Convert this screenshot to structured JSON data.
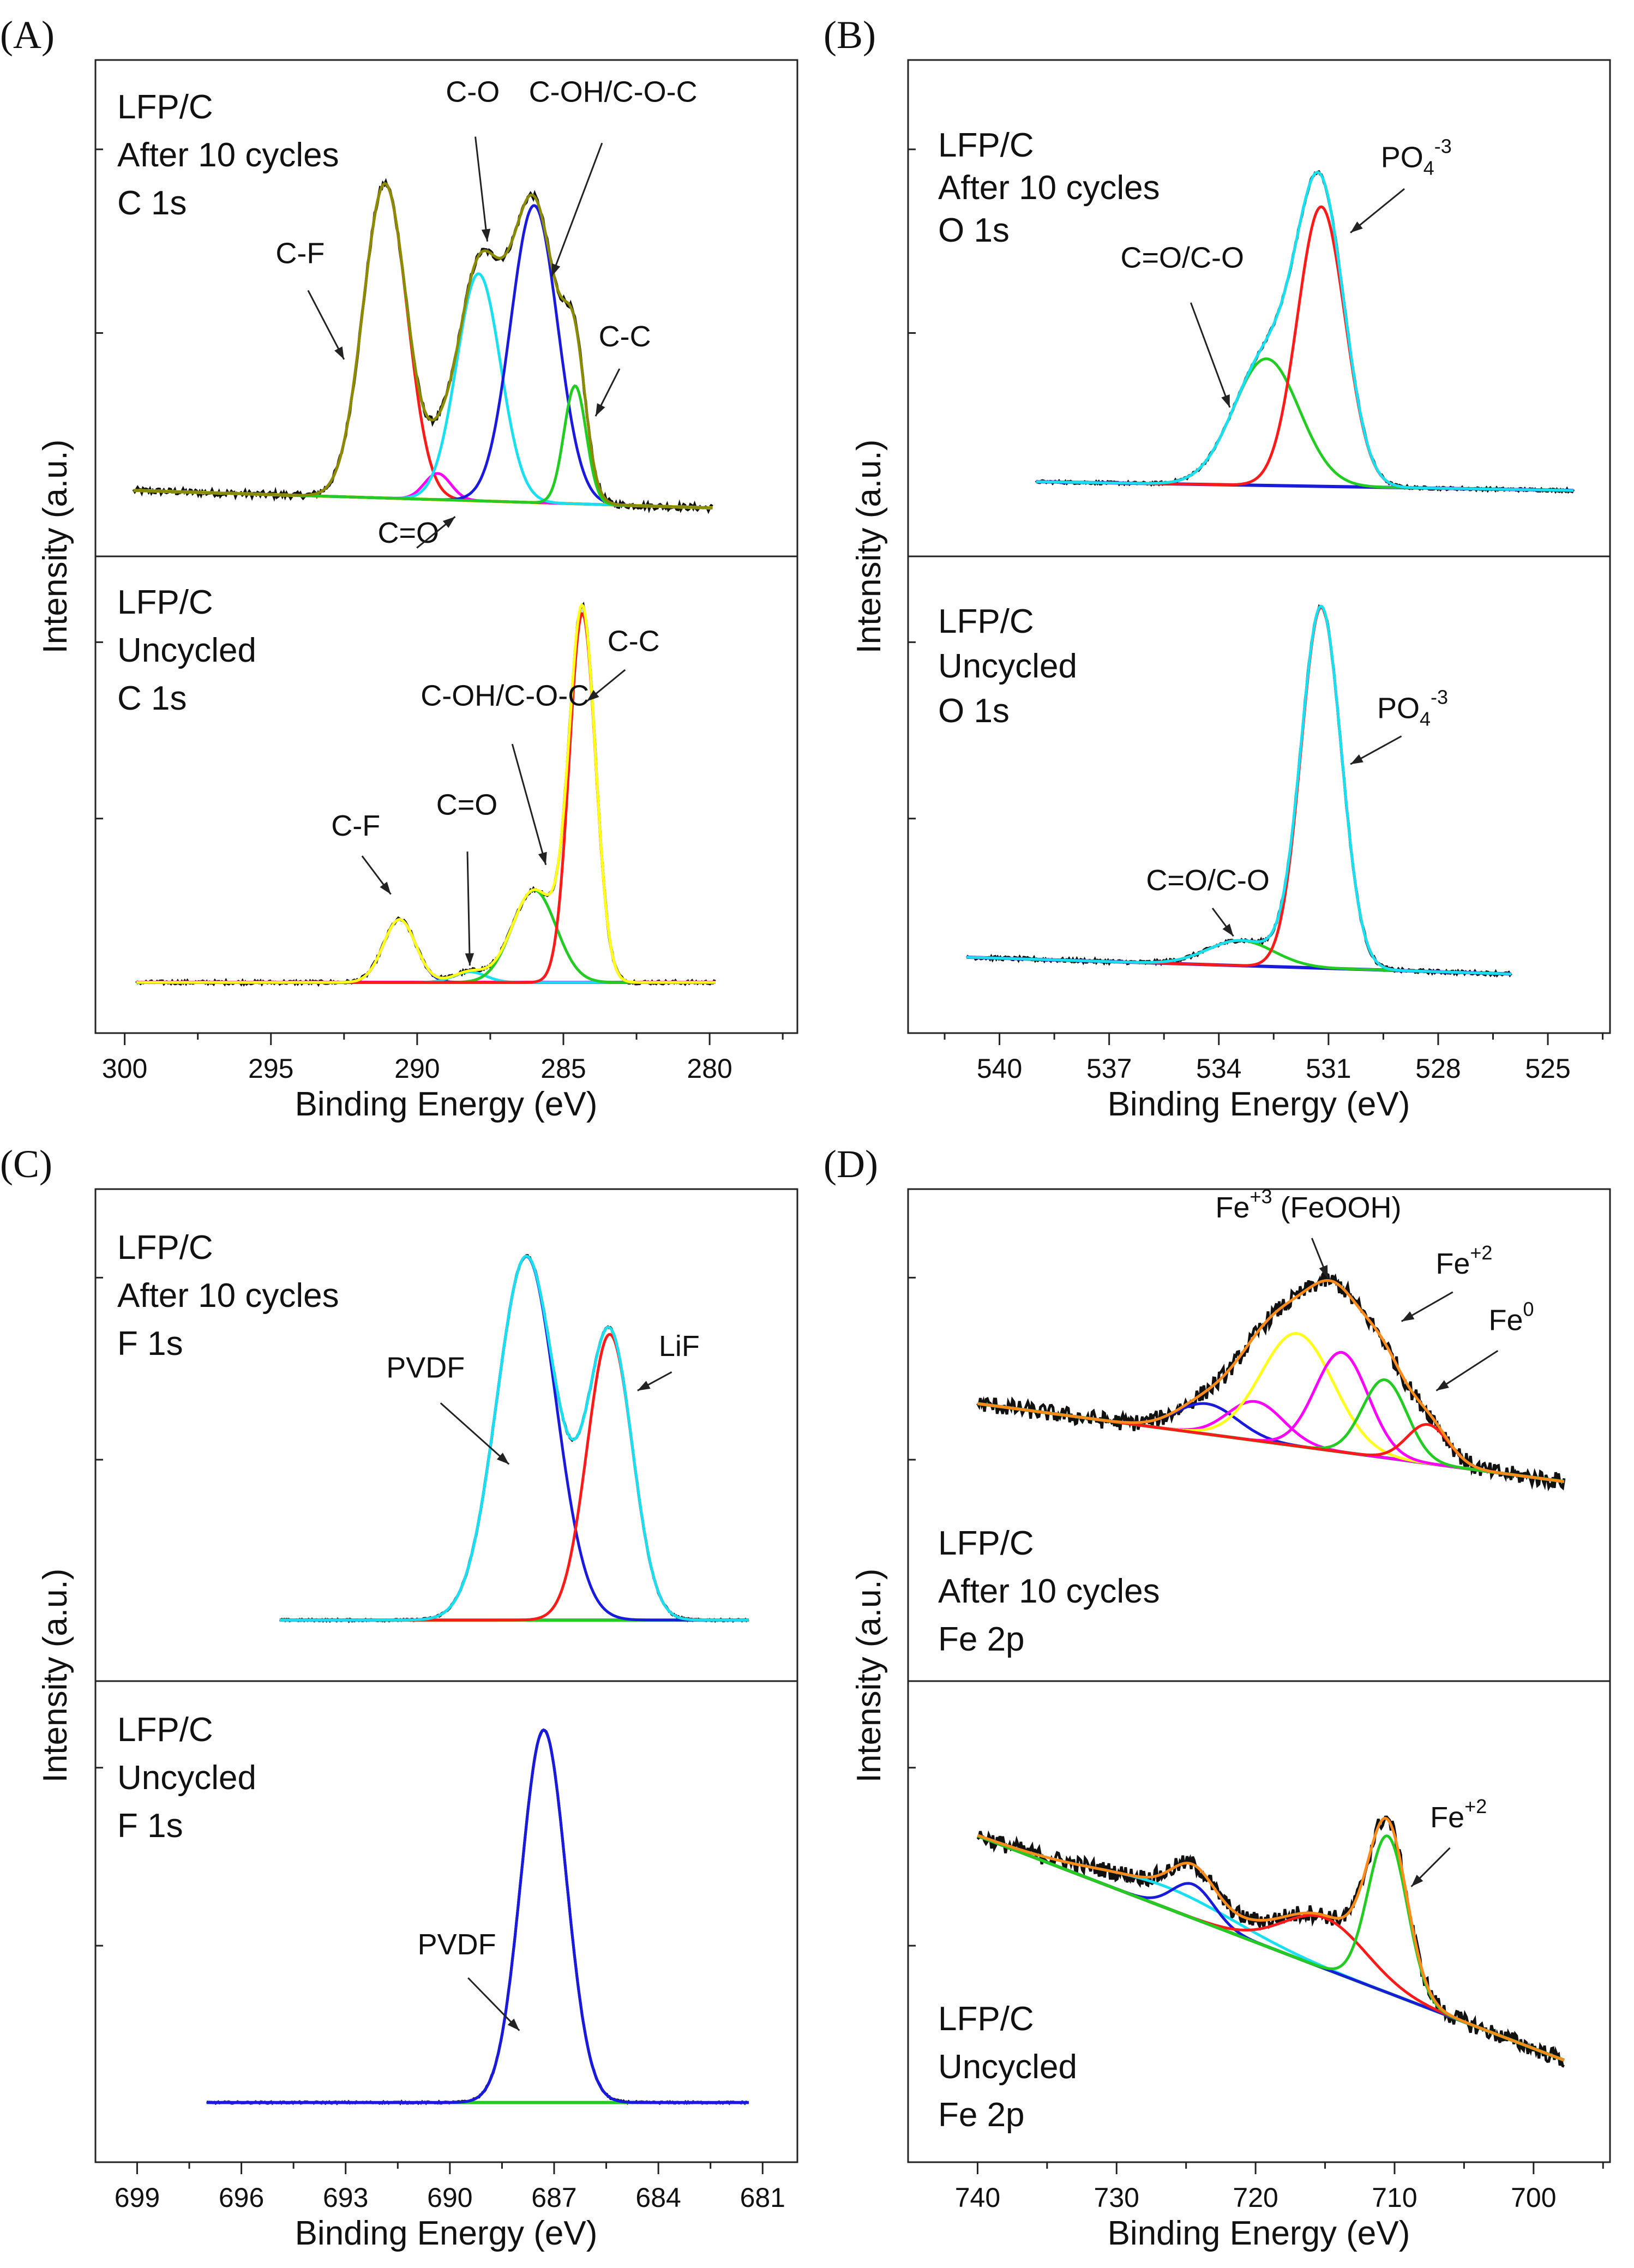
{
  "chart_data": [
    {
      "type": "line",
      "panel": "(A)",
      "xlabel": "Binding Energy (eV)",
      "ylabel": "Intensity (a.u.)",
      "xlim": [
        301,
        277
      ],
      "xticks": [
        "300",
        "295",
        "290",
        "285",
        "280"
      ],
      "xtick_values": [
        300,
        295,
        290,
        285,
        280
      ],
      "subplots": [
        {
          "name": "after",
          "text": [
            "LFP/C",
            "After 10 cycles",
            "C 1s"
          ],
          "x_range": [
            299.7,
            279.9
          ],
          "background": [
            0.06,
            0.02
          ],
          "noise": 0.007,
          "peaks": [
            {
              "name": "C-F",
              "center": 291.1,
              "height": 0.72,
              "width": 0.75,
              "color": "#ff1a1a"
            },
            {
              "name": "C=O",
              "center": 289.3,
              "height": 0.06,
              "width": 0.45,
              "color": "#ff00ff"
            },
            {
              "name": "C-O",
              "center": 287.9,
              "height": 0.52,
              "width": 0.75,
              "color": "#19e0f0"
            },
            {
              "name": "C-OH/C-O-C",
              "center": 286.0,
              "height": 0.68,
              "width": 0.8,
              "color": "#1a1add"
            },
            {
              "name": "C-C",
              "center": 284.6,
              "height": 0.27,
              "width": 0.38,
              "color": "#22cc22"
            }
          ],
          "baseline_color": "#ffff1a",
          "envelope_color": "#8b8b00",
          "labels": [
            {
              "text": "C-F",
              "x": 294.0,
              "y": 0.58,
              "tx": 292.5,
              "ty": 0.36
            },
            {
              "text": "C-O",
              "x": 288.1,
              "y": 0.95,
              "tx": 287.6,
              "ty": 0.63
            },
            {
              "text": "C-OH/C-O-C",
              "x": 283.3,
              "y": 0.95,
              "tx": 285.4,
              "ty": 0.55
            },
            {
              "text": "C-C",
              "x": 282.9,
              "y": 0.39,
              "tx": 283.9,
              "ty": 0.23
            },
            {
              "text": "C=O",
              "x": 290.3,
              "y": -0.06,
              "tx": 288.7,
              "ty": 0.0
            }
          ]
        },
        {
          "name": "unc",
          "text": [
            "LFP/C",
            "Uncycled",
            "C 1s"
          ],
          "x_range": [
            299.6,
            279.8
          ],
          "background": [
            0.03,
            0.03
          ],
          "noise": 0.004,
          "peaks": [
            {
              "name": "C-F",
              "center": 290.6,
              "height": 0.15,
              "width": 0.55,
              "color": "#1a1add"
            },
            {
              "name": "C=O",
              "center": 288.2,
              "height": 0.025,
              "width": 0.55,
              "color": "#19e0f0"
            },
            {
              "name": "C-OH/C-O-C",
              "center": 286.0,
              "height": 0.22,
              "width": 0.75,
              "color": "#22cc22"
            },
            {
              "name": "C-C",
              "center": 284.35,
              "height": 0.88,
              "width": 0.45,
              "color": "#ff1a1a"
            }
          ],
          "baseline_color": "#ff00ff",
          "envelope_color": "#ffff1a",
          "labels": [
            {
              "text": "C-F",
              "x": 292.1,
              "y": 0.38,
              "tx": 290.9,
              "ty": 0.24
            },
            {
              "text": "C=O",
              "x": 288.3,
              "y": 0.43,
              "tx": 288.2,
              "ty": 0.07
            },
            {
              "text": "C-OH/C-O-C",
              "x": 287.0,
              "y": 0.69,
              "tx": 285.6,
              "ty": 0.31
            },
            {
              "text": "C-C",
              "x": 282.6,
              "y": 0.82,
              "tx": 284.2,
              "ty": 0.7
            }
          ]
        }
      ]
    },
    {
      "type": "line",
      "panel": "(B)",
      "xlabel": "Binding Energy (eV)",
      "ylabel": "Intensity (a.u.)",
      "xlim": [
        542.5,
        523.3
      ],
      "xticks": [
        "540",
        "537",
        "534",
        "531",
        "528",
        "525"
      ],
      "xtick_values": [
        540,
        537,
        534,
        531,
        528,
        525
      ],
      "subplots": [
        {
          "name": "after",
          "text": [
            "LFP/C",
            "After 10 cycles",
            "O 1s"
          ],
          "x_range": [
            539.0,
            524.3
          ],
          "background": [
            0.08,
            0.06
          ],
          "noise": 0.003,
          "peaks": [
            {
              "name": "C=O/C-O",
              "center": 532.7,
              "height": 0.29,
              "width": 0.9,
              "color": "#22cc22"
            },
            {
              "name": "PO4",
              "center": 531.2,
              "height": 0.64,
              "width": 0.65,
              "color": "#ff1a1a"
            }
          ],
          "baseline_color": "#1a1add",
          "envelope_color": "#19e0f0",
          "labels": [
            {
              "text": "C=O/C-O",
              "x": 535.0,
              "y": 0.57,
              "tx": 533.7,
              "ty": 0.25
            },
            {
              "text": "PO",
              "x": 528.6,
              "y": 0.8,
              "tx": 530.4,
              "ty": 0.65,
              "sub": "4",
              "sup": "-3"
            }
          ]
        },
        {
          "name": "unc",
          "text": [
            "LFP/C",
            "Uncycled",
            "O 1s"
          ],
          "x_range": [
            540.9,
            526.0
          ],
          "background": [
            0.09,
            0.05
          ],
          "noise": 0.004,
          "peaks": [
            {
              "name": "C=O/C-O",
              "center": 533.4,
              "height": 0.06,
              "width": 0.9,
              "color": "#22cc22"
            },
            {
              "name": "PO4",
              "center": 531.2,
              "height": 0.86,
              "width": 0.55,
              "color": "#ff1a1a"
            }
          ],
          "baseline_color": "#1a1add",
          "envelope_color": "#19e0f0",
          "labels": [
            {
              "text": "C=O/C-O",
              "x": 534.3,
              "y": 0.25,
              "tx": 533.6,
              "ty": 0.14
            },
            {
              "text": "PO",
              "x": 528.7,
              "y": 0.66,
              "tx": 530.4,
              "ty": 0.55,
              "sub": "4",
              "sup": "-3"
            }
          ]
        }
      ]
    },
    {
      "type": "line",
      "panel": "(C)",
      "xlabel": "Binding Energy (eV)",
      "ylabel": "Intensity (a.u.)",
      "xlim": [
        700.2,
        680.0
      ],
      "xticks": [
        "699",
        "696",
        "693",
        "690",
        "687",
        "684",
        "681"
      ],
      "xtick_values": [
        699,
        696,
        693,
        690,
        687,
        684,
        681
      ],
      "subplots": [
        {
          "name": "after",
          "text": [
            "LFP/C",
            "After 10 cycles",
            "F 1s"
          ],
          "x_range": [
            694.9,
            681.4
          ],
          "background": [
            0.05,
            0.05
          ],
          "noise": 0.002,
          "peaks": [
            {
              "name": "PVDF",
              "center": 687.8,
              "height": 0.84,
              "width": 0.85,
              "color": "#1a1add"
            },
            {
              "name": "LiF",
              "center": 685.4,
              "height": 0.66,
              "width": 0.65,
              "color": "#ff1a1a"
            }
          ],
          "baseline_color": "#22cc22",
          "envelope_color": "#19e0f0",
          "labels": [
            {
              "text": "PVDF",
              "x": 690.7,
              "y": 0.61,
              "tx": 688.3,
              "ty": 0.41
            },
            {
              "text": "LiF",
              "x": 683.4,
              "y": 0.66,
              "tx": 684.6,
              "ty": 0.58
            }
          ]
        },
        {
          "name": "unc",
          "text": [
            "LFP/C",
            "Uncycled",
            "F 1s"
          ],
          "x_range": [
            697.0,
            681.4
          ],
          "background": [
            0.05,
            0.05
          ],
          "noise": 0.002,
          "peaks": [
            {
              "name": "PVDF",
              "center": 687.3,
              "height": 0.88,
              "width": 0.65,
              "color": "#1a1add"
            }
          ],
          "baseline_color": "#22cc22",
          "envelope_color": "#1a1add",
          "labels": [
            {
              "text": "PVDF",
              "x": 689.8,
              "y": 0.4,
              "tx": 688.0,
              "ty": 0.22
            }
          ]
        }
      ]
    },
    {
      "type": "line",
      "panel": "(D)",
      "xlabel": "Binding Energy (eV)",
      "ylabel": "Intensity (a.u.)",
      "xlim": [
        745.0,
        694.5
      ],
      "xticks": [
        "740",
        "730",
        "720",
        "710",
        "700"
      ],
      "xtick_values": [
        740,
        730,
        720,
        710,
        700
      ],
      "subplots": [
        {
          "name": "after",
          "text": [
            "LFP/C",
            "After 10 cycles",
            "Fe 2p"
          ],
          "x_range": [
            740.0,
            697.8
          ],
          "background": [
            0.55,
            0.37
          ],
          "noise": 0.02,
          "peaks": [
            {
              "name": "p1",
              "center": 723.5,
              "height": 0.07,
              "width": 2.2,
              "color": "#1a1add"
            },
            {
              "name": "p2",
              "center": 720.0,
              "height": 0.09,
              "width": 2.0,
              "color": "#ff00ff"
            },
            {
              "name": "Fe+3 (FeOOH)",
              "center": 717.0,
              "height": 0.26,
              "width": 2.6,
              "color": "#ffff1a"
            },
            {
              "name": "Fe+3b",
              "center": 713.8,
              "height": 0.23,
              "width": 1.9,
              "color": "#ff00ff"
            },
            {
              "name": "Fe+2",
              "center": 710.7,
              "height": 0.18,
              "width": 1.6,
              "color": "#22cc22"
            },
            {
              "name": "Fe0",
              "center": 707.6,
              "height": 0.09,
              "width": 1.5,
              "color": "#ff1a1a"
            }
          ],
          "baseline_color": "#22aa22",
          "envelope_color": "#ff8c1a",
          "labels": [
            {
              "text": "Fe",
              "x": 716.2,
              "y": 0.98,
              "tx": 714.8,
              "ty": 0.84,
              "sup": "+3",
              "tail": " (FeOOH)"
            },
            {
              "text": "Fe",
              "x": 705.0,
              "y": 0.85,
              "tx": 709.5,
              "ty": 0.74,
              "sup": "+2"
            },
            {
              "text": "Fe",
              "x": 701.6,
              "y": 0.72,
              "tx": 707.0,
              "ty": 0.58,
              "sup": "0"
            }
          ]
        },
        {
          "name": "unc",
          "text": [
            "LFP/C",
            "Uncycled",
            "Fe 2p"
          ],
          "x_range": [
            740.0,
            697.8
          ],
          "background": [
            0.68,
            0.15
          ],
          "noise": 0.02,
          "peaks": [
            {
              "name": "sat",
              "center": 726.5,
              "height": 0.05,
              "width": 5.0,
              "color": "#19e0f0"
            },
            {
              "name": "2p1/2",
              "center": 724.5,
              "height": 0.08,
              "width": 1.5,
              "color": "#1a1add"
            },
            {
              "name": "sat2",
              "center": 715.0,
              "height": 0.12,
              "width": 3.0,
              "color": "#ff1a1a"
            },
            {
              "name": "Fe+2",
              "center": 710.5,
              "height": 0.37,
              "width": 1.4,
              "color": "#22cc22"
            }
          ],
          "baseline_color": "#22aa22",
          "envelope_color": "#ff8c1a",
          "labels": [
            {
              "text": "Fe",
              "x": 705.4,
              "y": 0.7,
              "tx": 708.8,
              "ty": 0.56,
              "sup": "+2"
            }
          ]
        }
      ]
    }
  ]
}
